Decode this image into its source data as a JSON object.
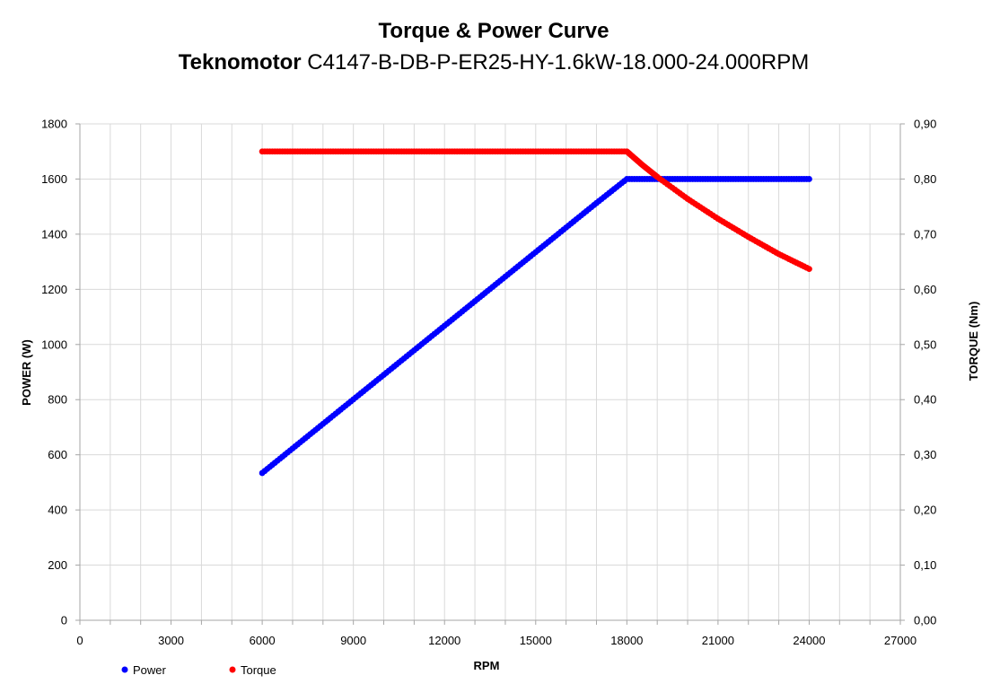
{
  "chart_data": {
    "type": "scatter",
    "title": "Torque & Power Curve",
    "subtitle_brand": "Teknomotor",
    "subtitle_model": " C4147-B-DB-P-ER25-HY-1.6kW-18.000-24.000RPM",
    "xlabel": "RPM",
    "ylabel_left": "POWER (W)",
    "ylabel_right": "TORQUE (Nm)",
    "xlim": [
      0,
      27000
    ],
    "ylim_left": [
      0,
      1800
    ],
    "ylim_right": [
      0,
      0.9
    ],
    "x_ticks": [
      "0",
      "3000",
      "6000",
      "9000",
      "12000",
      "15000",
      "18000",
      "21000",
      "24000",
      "27000"
    ],
    "y_left_ticks": [
      "0",
      "200",
      "400",
      "600",
      "800",
      "1000",
      "1200",
      "1400",
      "1600",
      "1800"
    ],
    "y_right_ticks": [
      "0,00",
      "0,10",
      "0,20",
      "0,30",
      "0,40",
      "0,50",
      "0,60",
      "0,70",
      "0,80",
      "0,90"
    ],
    "grid": true,
    "legend_position": "bottom-left",
    "series": [
      {
        "name": "Power",
        "axis": "left",
        "color": "#0000ff",
        "x": [
          6000,
          7000,
          8000,
          9000,
          10000,
          11000,
          12000,
          13000,
          14000,
          15000,
          16000,
          17000,
          18000,
          19000,
          20000,
          21000,
          22000,
          23000,
          24000
        ],
        "y": [
          534,
          623,
          712,
          801,
          890,
          979,
          1068,
          1157,
          1246,
          1335,
          1424,
          1513,
          1600,
          1600,
          1600,
          1600,
          1600,
          1600,
          1600
        ]
      },
      {
        "name": "Torque",
        "axis": "right",
        "color": "#ff0000",
        "x": [
          6000,
          7000,
          8000,
          9000,
          10000,
          11000,
          12000,
          13000,
          14000,
          15000,
          16000,
          17000,
          18000,
          18500,
          19000,
          20000,
          21000,
          22000,
          23000,
          24000
        ],
        "y": [
          0.85,
          0.85,
          0.85,
          0.85,
          0.85,
          0.85,
          0.85,
          0.85,
          0.85,
          0.85,
          0.85,
          0.85,
          0.85,
          0.826,
          0.804,
          0.764,
          0.728,
          0.695,
          0.664,
          0.637
        ]
      }
    ]
  }
}
